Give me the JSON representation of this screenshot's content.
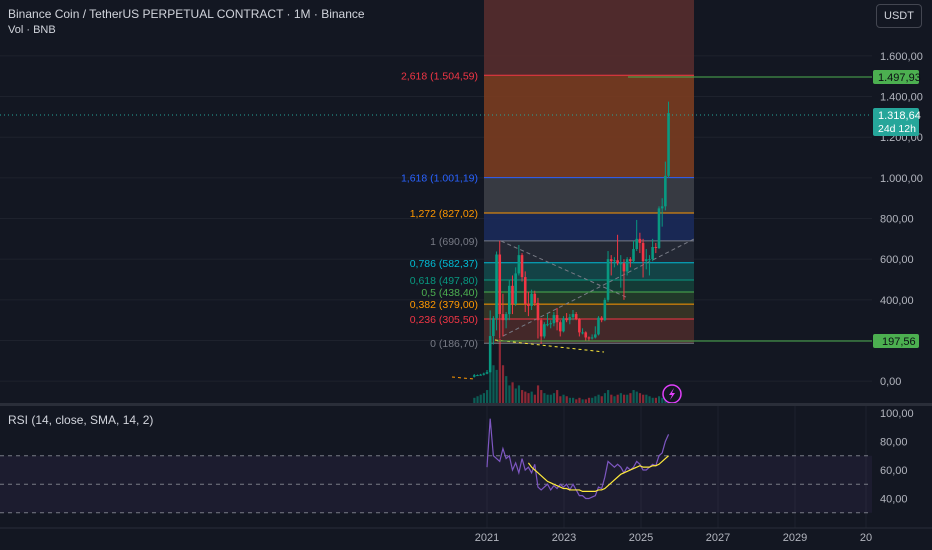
{
  "header": {
    "title": "Binance Coin / TetherUS PERPETUAL CONTRACT · 1M · Binance",
    "vol_label": "Vol · BNB",
    "currency_button": "USDT"
  },
  "price_axis": {
    "ticks": [
      "1.600,00",
      "1.400,00",
      "1.200,00",
      "1.000,00",
      "800,00",
      "600,00",
      "400,00",
      "200,00",
      "0,00"
    ]
  },
  "rsi_axis": {
    "ticks": [
      "100,00",
      "80,00",
      "60,00",
      "40,00"
    ]
  },
  "time_axis": {
    "ticks": [
      "2021",
      "2023",
      "2025",
      "2027",
      "2029",
      "20"
    ]
  },
  "price_labels": {
    "target": "1.497,93",
    "last": "1.318,64",
    "countdown": "24d 12h",
    "support": "197,56"
  },
  "fib_levels": [
    {
      "label": "2,618 (1.504,59)",
      "price": 1504.59,
      "color": "#f23645"
    },
    {
      "label": "1,618 (1.001,19)",
      "price": 1001.19,
      "color": "#2962ff"
    },
    {
      "label": "1,272 (827,02)",
      "price": 827.02,
      "color": "#ff9800"
    },
    {
      "label": "1 (690,09)",
      "price": 690.09,
      "color": "#787b86"
    },
    {
      "label": "0,786 (582,37)",
      "price": 582.37,
      "color": "#00bcd4"
    },
    {
      "label": "0,618 (497,80)",
      "price": 497.8,
      "color": "#089981"
    },
    {
      "label": "0,5 (438,40)",
      "price": 438.4,
      "color": "#4caf50"
    },
    {
      "label": "0,382 (379,00)",
      "price": 379.0,
      "color": "#ff9800"
    },
    {
      "label": "0,236 (305,50)",
      "price": 305.5,
      "color": "#f23645"
    },
    {
      "label": "0 (186,70)",
      "price": 186.7,
      "color": "#787b86"
    }
  ],
  "rsi": {
    "label": "RSI (14, close, SMA, 14, 2)"
  },
  "colors": {
    "up": "#089981",
    "down": "#f23645",
    "rsi": "#7e57c2",
    "rsi_ma": "#ffeb3b",
    "green_line": "#4caf50"
  },
  "chart_data": {
    "type": "candlestick",
    "title": "Binance Coin / TetherUS PERPETUAL CONTRACT · 1M · Binance",
    "ylim": [
      -150,
      1850
    ],
    "xlim": [
      "2020-01",
      "2030-08"
    ],
    "candles": [
      {
        "t": "2020-09",
        "o": 22,
        "h": 35,
        "l": 18,
        "c": 29
      },
      {
        "t": "2020-10",
        "o": 29,
        "h": 33,
        "l": 26,
        "c": 30
      },
      {
        "t": "2020-11",
        "o": 30,
        "h": 36,
        "l": 27,
        "c": 32
      },
      {
        "t": "2020-12",
        "o": 32,
        "h": 42,
        "l": 28,
        "c": 37
      },
      {
        "t": "2021-01",
        "o": 37,
        "h": 55,
        "l": 34,
        "c": 44
      },
      {
        "t": "2021-02",
        "o": 44,
        "h": 348,
        "l": 43,
        "c": 222
      },
      {
        "t": "2021-03",
        "o": 222,
        "h": 320,
        "l": 180,
        "c": 310
      },
      {
        "t": "2021-04",
        "o": 310,
        "h": 638,
        "l": 250,
        "c": 623
      },
      {
        "t": "2021-05",
        "o": 623,
        "h": 691,
        "l": 210,
        "c": 330
      },
      {
        "t": "2021-06",
        "o": 330,
        "h": 430,
        "l": 220,
        "c": 300
      },
      {
        "t": "2021-07",
        "o": 300,
        "h": 340,
        "l": 260,
        "c": 330
      },
      {
        "t": "2021-08",
        "o": 330,
        "h": 500,
        "l": 300,
        "c": 469
      },
      {
        "t": "2021-09",
        "o": 469,
        "h": 520,
        "l": 330,
        "c": 380
      },
      {
        "t": "2021-10",
        "o": 380,
        "h": 560,
        "l": 370,
        "c": 530
      },
      {
        "t": "2021-11",
        "o": 530,
        "h": 670,
        "l": 520,
        "c": 620
      },
      {
        "t": "2021-12",
        "o": 620,
        "h": 630,
        "l": 490,
        "c": 512
      },
      {
        "t": "2022-01",
        "o": 512,
        "h": 540,
        "l": 340,
        "c": 380
      },
      {
        "t": "2022-02",
        "o": 380,
        "h": 440,
        "l": 320,
        "c": 370
      },
      {
        "t": "2022-03",
        "o": 370,
        "h": 450,
        "l": 350,
        "c": 430
      },
      {
        "t": "2022-04",
        "o": 430,
        "h": 445,
        "l": 370,
        "c": 385
      },
      {
        "t": "2022-05",
        "o": 385,
        "h": 410,
        "l": 210,
        "c": 300
      },
      {
        "t": "2022-06",
        "o": 300,
        "h": 310,
        "l": 183,
        "c": 220
      },
      {
        "t": "2022-07",
        "o": 220,
        "h": 290,
        "l": 210,
        "c": 280
      },
      {
        "t": "2022-08",
        "o": 280,
        "h": 330,
        "l": 270,
        "c": 280
      },
      {
        "t": "2022-09",
        "o": 280,
        "h": 300,
        "l": 260,
        "c": 285
      },
      {
        "t": "2022-10",
        "o": 285,
        "h": 340,
        "l": 270,
        "c": 325
      },
      {
        "t": "2022-11",
        "o": 325,
        "h": 360,
        "l": 250,
        "c": 290
      },
      {
        "t": "2022-12",
        "o": 290,
        "h": 300,
        "l": 220,
        "c": 245
      },
      {
        "t": "2023-01",
        "o": 245,
        "h": 320,
        "l": 240,
        "c": 310
      },
      {
        "t": "2023-02",
        "o": 310,
        "h": 335,
        "l": 290,
        "c": 300
      },
      {
        "t": "2023-03",
        "o": 300,
        "h": 330,
        "l": 280,
        "c": 315
      },
      {
        "t": "2023-04",
        "o": 315,
        "h": 350,
        "l": 300,
        "c": 330
      },
      {
        "t": "2023-05",
        "o": 330,
        "h": 340,
        "l": 300,
        "c": 305
      },
      {
        "t": "2023-06",
        "o": 305,
        "h": 310,
        "l": 220,
        "c": 240
      },
      {
        "t": "2023-07",
        "o": 240,
        "h": 260,
        "l": 230,
        "c": 240
      },
      {
        "t": "2023-08",
        "o": 240,
        "h": 245,
        "l": 200,
        "c": 215
      },
      {
        "t": "2023-09",
        "o": 215,
        "h": 220,
        "l": 200,
        "c": 212
      },
      {
        "t": "2023-10",
        "o": 212,
        "h": 230,
        "l": 205,
        "c": 215
      },
      {
        "t": "2023-11",
        "o": 215,
        "h": 270,
        "l": 210,
        "c": 230
      },
      {
        "t": "2023-12",
        "o": 230,
        "h": 320,
        "l": 225,
        "c": 312
      },
      {
        "t": "2024-01",
        "o": 312,
        "h": 320,
        "l": 290,
        "c": 300
      },
      {
        "t": "2024-02",
        "o": 300,
        "h": 410,
        "l": 295,
        "c": 400
      },
      {
        "t": "2024-03",
        "o": 400,
        "h": 640,
        "l": 390,
        "c": 600
      },
      {
        "t": "2024-04",
        "o": 600,
        "h": 620,
        "l": 520,
        "c": 590
      },
      {
        "t": "2024-05",
        "o": 590,
        "h": 610,
        "l": 560,
        "c": 595
      },
      {
        "t": "2024-06",
        "o": 595,
        "h": 720,
        "l": 570,
        "c": 580
      },
      {
        "t": "2024-07",
        "o": 580,
        "h": 620,
        "l": 460,
        "c": 580
      },
      {
        "t": "2024-08",
        "o": 580,
        "h": 600,
        "l": 400,
        "c": 540
      },
      {
        "t": "2024-09",
        "o": 540,
        "h": 610,
        "l": 520,
        "c": 600
      },
      {
        "t": "2024-10",
        "o": 600,
        "h": 610,
        "l": 560,
        "c": 590
      },
      {
        "t": "2024-11",
        "o": 590,
        "h": 690,
        "l": 580,
        "c": 650
      },
      {
        "t": "2024-12",
        "o": 650,
        "h": 793,
        "l": 640,
        "c": 700
      },
      {
        "t": "2025-01",
        "o": 700,
        "h": 730,
        "l": 630,
        "c": 680
      },
      {
        "t": "2025-02",
        "o": 680,
        "h": 700,
        "l": 510,
        "c": 590
      },
      {
        "t": "2025-03",
        "o": 590,
        "h": 650,
        "l": 550,
        "c": 600
      },
      {
        "t": "2025-04",
        "o": 600,
        "h": 620,
        "l": 520,
        "c": 600
      },
      {
        "t": "2025-05",
        "o": 600,
        "h": 700,
        "l": 590,
        "c": 660
      },
      {
        "t": "2025-06",
        "o": 660,
        "h": 680,
        "l": 630,
        "c": 655
      },
      {
        "t": "2025-07",
        "o": 655,
        "h": 860,
        "l": 650,
        "c": 850
      },
      {
        "t": "2025-08",
        "o": 850,
        "h": 900,
        "l": 760,
        "c": 860
      },
      {
        "t": "2025-09",
        "o": 860,
        "h": 1080,
        "l": 840,
        "c": 1010
      },
      {
        "t": "2025-10",
        "o": 1010,
        "h": 1375,
        "l": 1000,
        "c": 1318.64
      }
    ],
    "volume": [
      4,
      5,
      6,
      7,
      9,
      30,
      25,
      22,
      42,
      25,
      18,
      12,
      14,
      10,
      12,
      9,
      8,
      7,
      8,
      6,
      12,
      9,
      7,
      6,
      6,
      7,
      9,
      5,
      6,
      5,
      4,
      4,
      3,
      4,
      3,
      3,
      4,
      4,
      5,
      6,
      5,
      7,
      9,
      6,
      5,
      6,
      7,
      6,
      6,
      7,
      9,
      8,
      7,
      6,
      6,
      5,
      4,
      4,
      5,
      4,
      4,
      6
    ],
    "rsi_values": [
      [
        "2021-01",
        62
      ],
      [
        "2021-02",
        96
      ],
      [
        "2021-03",
        70
      ],
      [
        "2021-04",
        68
      ],
      [
        "2021-05",
        66
      ],
      [
        "2021-06",
        75
      ],
      [
        "2021-07",
        68
      ],
      [
        "2021-08",
        70
      ],
      [
        "2021-09",
        60
      ],
      [
        "2021-10",
        65
      ],
      [
        "2021-11",
        58
      ],
      [
        "2021-12",
        68
      ],
      [
        "2022-01",
        60
      ],
      [
        "2022-02",
        62
      ],
      [
        "2022-03",
        58
      ],
      [
        "2022-04",
        64
      ],
      [
        "2022-05",
        48
      ],
      [
        "2022-06",
        46
      ],
      [
        "2022-07",
        48
      ],
      [
        "2022-08",
        50
      ],
      [
        "2022-09",
        46
      ],
      [
        "2022-10",
        49
      ],
      [
        "2022-11",
        47
      ],
      [
        "2022-12",
        50
      ],
      [
        "2023-01",
        48
      ],
      [
        "2023-02",
        50
      ],
      [
        "2023-03",
        46
      ],
      [
        "2023-04",
        50
      ],
      [
        "2023-05",
        46
      ],
      [
        "2023-06",
        42
      ],
      [
        "2023-07",
        42
      ],
      [
        "2023-08",
        40
      ],
      [
        "2023-09",
        40
      ],
      [
        "2023-10",
        41
      ],
      [
        "2023-11",
        42
      ],
      [
        "2023-12",
        48
      ],
      [
        "2024-01",
        47
      ],
      [
        "2024-02",
        55
      ],
      [
        "2024-03",
        66
      ],
      [
        "2024-04",
        64
      ],
      [
        "2024-05",
        62
      ],
      [
        "2024-06",
        64
      ],
      [
        "2024-07",
        62
      ],
      [
        "2024-08",
        58
      ],
      [
        "2024-09",
        62
      ],
      [
        "2024-10",
        60
      ],
      [
        "2024-11",
        62
      ],
      [
        "2024-12",
        66
      ],
      [
        "2025-01",
        64
      ],
      [
        "2025-02",
        60
      ],
      [
        "2025-03",
        60
      ],
      [
        "2025-04",
        62
      ],
      [
        "2025-05",
        64
      ],
      [
        "2025-06",
        63
      ],
      [
        "2025-07",
        70
      ],
      [
        "2025-08",
        72
      ],
      [
        "2025-09",
        80
      ],
      [
        "2025-10",
        85
      ]
    ],
    "rsi_ma_values": [
      [
        "2022-02",
        65
      ],
      [
        "2022-03",
        62
      ],
      [
        "2022-04",
        60
      ],
      [
        "2022-05",
        58
      ],
      [
        "2022-06",
        56
      ],
      [
        "2022-07",
        54
      ],
      [
        "2022-08",
        52
      ],
      [
        "2022-09",
        51
      ],
      [
        "2022-10",
        50
      ],
      [
        "2022-11",
        49
      ],
      [
        "2022-12",
        48
      ],
      [
        "2023-01",
        47
      ],
      [
        "2023-02",
        47
      ],
      [
        "2023-03",
        46
      ],
      [
        "2023-04",
        46
      ],
      [
        "2023-05",
        46
      ],
      [
        "2023-06",
        46
      ],
      [
        "2023-07",
        45
      ],
      [
        "2023-08",
        45
      ],
      [
        "2023-09",
        45
      ],
      [
        "2023-10",
        45
      ],
      [
        "2023-11",
        45
      ],
      [
        "2023-12",
        46
      ],
      [
        "2024-01",
        46
      ],
      [
        "2024-02",
        47
      ],
      [
        "2024-03",
        49
      ],
      [
        "2024-04",
        51
      ],
      [
        "2024-05",
        53
      ],
      [
        "2024-06",
        55
      ],
      [
        "2024-07",
        57
      ],
      [
        "2024-08",
        58
      ],
      [
        "2024-09",
        59
      ],
      [
        "2024-10",
        60
      ],
      [
        "2024-11",
        61
      ],
      [
        "2024-12",
        62
      ],
      [
        "2025-01",
        63
      ],
      [
        "2025-02",
        62
      ],
      [
        "2025-03",
        62
      ],
      [
        "2025-04",
        62
      ],
      [
        "2025-05",
        63
      ],
      [
        "2025-06",
        63
      ],
      [
        "2025-07",
        64
      ],
      [
        "2025-08",
        66
      ],
      [
        "2025-09",
        68
      ],
      [
        "2025-10",
        70
      ]
    ],
    "rsi_ylim": [
      18,
      104
    ]
  }
}
